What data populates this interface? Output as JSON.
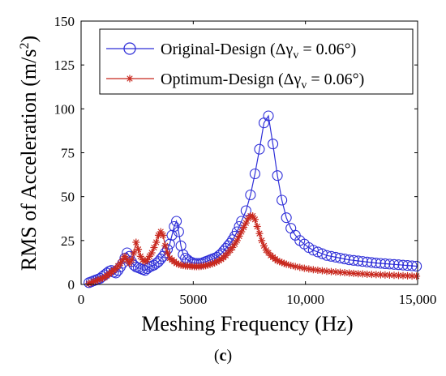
{
  "chart_data": {
    "type": "line",
    "xlabel": "Meshing Frequency (Hz)",
    "ylabel": "RMS of Acceleration (m/s2)",
    "xlim": [
      0,
      15000
    ],
    "ylim": [
      0,
      150
    ],
    "xticks": [
      0,
      5000,
      10000,
      15000
    ],
    "xtick_labels": [
      "0",
      "5000",
      "10,000",
      "15,000"
    ],
    "yticks": [
      0,
      25,
      50,
      75,
      100,
      125,
      150
    ],
    "ytick_labels": [
      "0",
      "25",
      "50",
      "75",
      "100",
      "125",
      "150"
    ],
    "grid": false,
    "legend_position": "top-right",
    "legend": {
      "original_prefix": "Original-Design (",
      "optimum_prefix": "Optimum-Design (",
      "delta_symbol": "Δγ",
      "subscript": "v",
      "equals_value": " = 0.06°)"
    },
    "caption": "c",
    "series": [
      {
        "name": "Original-Design (Δγv = 0.06°)",
        "color": "#2f2fd8",
        "marker": "circle",
        "x": [
          350,
          450,
          550,
          650,
          750,
          850,
          950,
          1050,
          1150,
          1250,
          1350,
          1450,
          1550,
          1650,
          1750,
          1850,
          1950,
          2050,
          2150,
          2250,
          2350,
          2450,
          2550,
          2650,
          2750,
          2850,
          2950,
          3050,
          3150,
          3250,
          3350,
          3450,
          3550,
          3650,
          3750,
          3850,
          3950,
          4050,
          4150,
          4250,
          4350,
          4450,
          4550,
          4650,
          4750,
          4850,
          4950,
          5050,
          5150,
          5250,
          5350,
          5450,
          5550,
          5650,
          5750,
          5850,
          5950,
          6050,
          6150,
          6250,
          6350,
          6450,
          6550,
          6650,
          6750,
          6850,
          6950,
          7050,
          7150,
          7350,
          7550,
          7750,
          7950,
          8150,
          8350,
          8550,
          8750,
          8950,
          9150,
          9350,
          9550,
          9750,
          9950,
          10150,
          10350,
          10550,
          10750,
          10950,
          11150,
          11350,
          11550,
          11750,
          11950,
          12150,
          12350,
          12550,
          12750,
          12950,
          13150,
          13350,
          13550,
          13750,
          13950,
          14150,
          14350,
          14550,
          14750,
          14950
        ],
        "y": [
          1,
          1.5,
          2,
          2.5,
          3,
          3.5,
          4.5,
          5.5,
          6.5,
          7.5,
          8,
          7,
          6.5,
          8,
          10,
          12,
          15,
          18,
          16,
          13,
          11,
          10,
          9.5,
          9,
          8.5,
          8,
          9,
          10,
          10.5,
          11,
          12,
          13,
          14.5,
          16,
          18,
          20,
          23,
          28,
          33,
          36,
          30,
          22,
          17,
          15,
          14,
          13,
          12.5,
          12,
          12,
          12,
          12,
          12.5,
          13,
          13.5,
          14,
          14.5,
          15,
          15.5,
          16.5,
          17.5,
          19,
          20.5,
          22,
          23.5,
          25.5,
          27.5,
          30,
          33,
          36,
          42,
          51,
          63,
          77,
          92,
          96,
          80,
          62,
          48,
          38,
          32,
          28,
          25,
          23,
          21,
          19.5,
          18.5,
          17.5,
          16.5,
          16,
          15.5,
          15,
          14.5,
          14,
          13.7,
          13.4,
          13.1,
          12.8,
          12.5,
          12.2,
          12,
          11.8,
          11.6,
          11.4,
          11.2,
          11,
          10.8,
          10.6,
          10.4
        ]
      },
      {
        "name": "Optimum-Design (Δγv = 0.06°)",
        "color": "#c8281e",
        "marker": "asterisk",
        "x": [
          350,
          450,
          550,
          650,
          750,
          850,
          950,
          1050,
          1150,
          1250,
          1350,
          1450,
          1550,
          1650,
          1750,
          1850,
          1950,
          2050,
          2150,
          2250,
          2350,
          2450,
          2550,
          2650,
          2750,
          2850,
          2950,
          3050,
          3150,
          3250,
          3350,
          3450,
          3550,
          3650,
          3750,
          3850,
          3950,
          4050,
          4150,
          4250,
          4350,
          4450,
          4550,
          4650,
          4750,
          4850,
          4950,
          5050,
          5150,
          5250,
          5350,
          5450,
          5550,
          5650,
          5750,
          5850,
          5950,
          6050,
          6150,
          6250,
          6350,
          6450,
          6550,
          6650,
          6750,
          6850,
          6950,
          7050,
          7150,
          7250,
          7350,
          7450,
          7550,
          7650,
          7750,
          7850,
          7950,
          8050,
          8150,
          8250,
          8350,
          8450,
          8550,
          8650,
          8750,
          8850,
          8950,
          9050,
          9150,
          9350,
          9550,
          9750,
          9950,
          10150,
          10350,
          10550,
          10750,
          10950,
          11150,
          11350,
          11550,
          11750,
          11950,
          12150,
          12350,
          12550,
          12750,
          12950,
          13150,
          13350,
          13550,
          13750,
          13950,
          14150,
          14350,
          14550,
          14750,
          14950
        ],
        "y": [
          0.5,
          1,
          1.5,
          2,
          2.5,
          3,
          3.5,
          4,
          5,
          6,
          7,
          8,
          9,
          10.5,
          12,
          14,
          16,
          14,
          12,
          14,
          18,
          24,
          20,
          16,
          14,
          13,
          14,
          16,
          18,
          21,
          24,
          28,
          30,
          28,
          22,
          18,
          15,
          14,
          13,
          12,
          11.5,
          11,
          10.8,
          10.6,
          10.5,
          10.4,
          10.3,
          10.2,
          10.2,
          10.2,
          10.3,
          10.5,
          10.7,
          11,
          11.4,
          11.8,
          12.3,
          12.9,
          13.6,
          14.4,
          15.3,
          16.5,
          18,
          19.5,
          21,
          23,
          25,
          27.5,
          30,
          32.5,
          35,
          37.5,
          39,
          39,
          37,
          33,
          29,
          25,
          22,
          19.5,
          18,
          16.5,
          15.5,
          14.5,
          13.5,
          13,
          12.5,
          12,
          11.5,
          10.8,
          10.2,
          9.7,
          9.2,
          8.8,
          8.4,
          8.1,
          7.8,
          7.5,
          7.3,
          7.1,
          6.9,
          6.7,
          6.5,
          6.3,
          6.1,
          6,
          5.8,
          5.7,
          5.6,
          5.5,
          5.4,
          5.3,
          5.2,
          5.1,
          5,
          4.9,
          4.8,
          4.7
        ]
      }
    ]
  }
}
